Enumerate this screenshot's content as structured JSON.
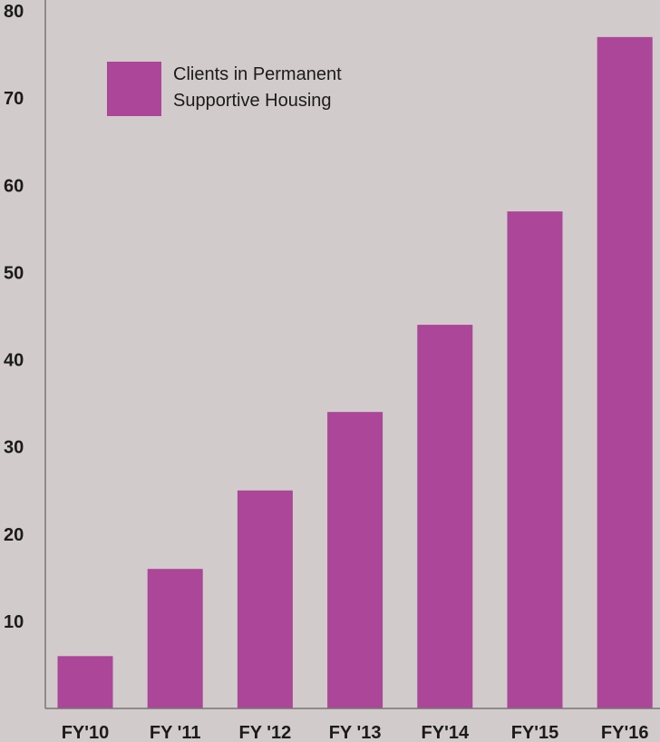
{
  "chart_data": {
    "type": "bar",
    "categories": [
      "FY'10",
      "FY '11",
      "FY '12",
      "FY '13",
      "FY'14",
      "FY'15",
      "FY'16"
    ],
    "series": [
      {
        "name": "Clients in Permanent Supportive Housing",
        "values": [
          6,
          16,
          25,
          34,
          44,
          57,
          77
        ],
        "color": "#ab4699"
      }
    ],
    "ylim": [
      0,
      80
    ],
    "yticks": [
      10,
      20,
      30,
      40,
      50,
      60,
      70,
      80
    ],
    "grid": false,
    "legend": {
      "position": "top-left",
      "lines": [
        "Clients in Permanent",
        "Supportive Housing"
      ]
    },
    "background": "#d2cbcb",
    "axis_color": "#7a7474"
  }
}
